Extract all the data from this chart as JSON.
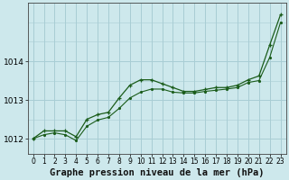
{
  "title": "Graphe pression niveau de la mer (hPa)",
  "background_color": "#cde8ec",
  "grid_color": "#a8cdd4",
  "line_color": "#1a5c1a",
  "marker_color": "#1a5c1a",
  "xlim": [
    -0.5,
    23.5
  ],
  "ylim": [
    1011.6,
    1015.5
  ],
  "yticks": [
    1012,
    1013,
    1014
  ],
  "xticks": [
    0,
    1,
    2,
    3,
    4,
    5,
    6,
    7,
    8,
    9,
    10,
    11,
    12,
    13,
    14,
    15,
    16,
    17,
    18,
    19,
    20,
    21,
    22,
    23
  ],
  "series1_x": [
    0,
    1,
    2,
    3,
    4,
    5,
    6,
    7,
    8,
    9,
    10,
    11,
    12,
    13,
    14,
    15,
    16,
    17,
    18,
    19,
    20,
    21,
    22,
    23
  ],
  "series1_y": [
    1012.0,
    1012.2,
    1012.2,
    1012.2,
    1012.05,
    1012.5,
    1012.62,
    1012.68,
    1013.05,
    1013.38,
    1013.52,
    1013.52,
    1013.42,
    1013.32,
    1013.22,
    1013.22,
    1013.27,
    1013.32,
    1013.32,
    1013.38,
    1013.52,
    1013.62,
    1014.42,
    1015.2
  ],
  "series2_x": [
    0,
    1,
    2,
    3,
    4,
    5,
    6,
    7,
    8,
    9,
    10,
    11,
    12,
    13,
    14,
    15,
    16,
    17,
    18,
    19,
    20,
    21,
    22,
    23
  ],
  "series2_y": [
    1012.0,
    1012.1,
    1012.15,
    1012.1,
    1011.95,
    1012.32,
    1012.48,
    1012.55,
    1012.78,
    1013.05,
    1013.2,
    1013.28,
    1013.28,
    1013.2,
    1013.18,
    1013.18,
    1013.22,
    1013.25,
    1013.28,
    1013.32,
    1013.45,
    1013.5,
    1014.1,
    1015.0
  ],
  "xlabel_fontsize": 7.5,
  "ytick_fontsize": 6.5,
  "xtick_fontsize": 5.5
}
